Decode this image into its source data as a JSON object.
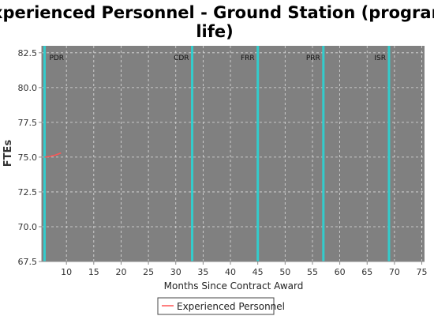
{
  "chart_data": {
    "type": "line",
    "title_lines": [
      "Experienced Personnel - Ground Station (program",
      "life)"
    ],
    "xlabel": "Months Since Contract Award",
    "ylabel": "FTEs",
    "xlim": [
      5.5,
      75.5
    ],
    "ylim": [
      67.5,
      83
    ],
    "xticks": [
      10,
      15,
      20,
      25,
      30,
      35,
      40,
      45,
      50,
      55,
      60,
      65,
      70,
      75
    ],
    "yticks": [
      67.5,
      70.0,
      72.5,
      75.0,
      77.5,
      80.0,
      82.5
    ],
    "ytick_labels": [
      "67.5",
      "70.0",
      "72.5",
      "75.0",
      "77.5",
      "80.0",
      "82.5"
    ],
    "grid": true,
    "series": [
      {
        "name": "Experienced Personnel",
        "color": "#ff5555",
        "x": [
          6.0,
          7.0,
          8.0,
          9.0
        ],
        "y": [
          75.0,
          75.05,
          75.15,
          75.3
        ]
      }
    ],
    "milestones": [
      {
        "label": "PDR",
        "x": 6.0
      },
      {
        "label": "CDR",
        "x": 33.0
      },
      {
        "label": "FRR",
        "x": 45.0
      },
      {
        "label": "PRR",
        "x": 57.0
      },
      {
        "label": "ISR",
        "x": 69.0
      }
    ],
    "milestone_color": "#33cccc",
    "plot_background": "#808080",
    "legend_position": "bottom-center"
  }
}
